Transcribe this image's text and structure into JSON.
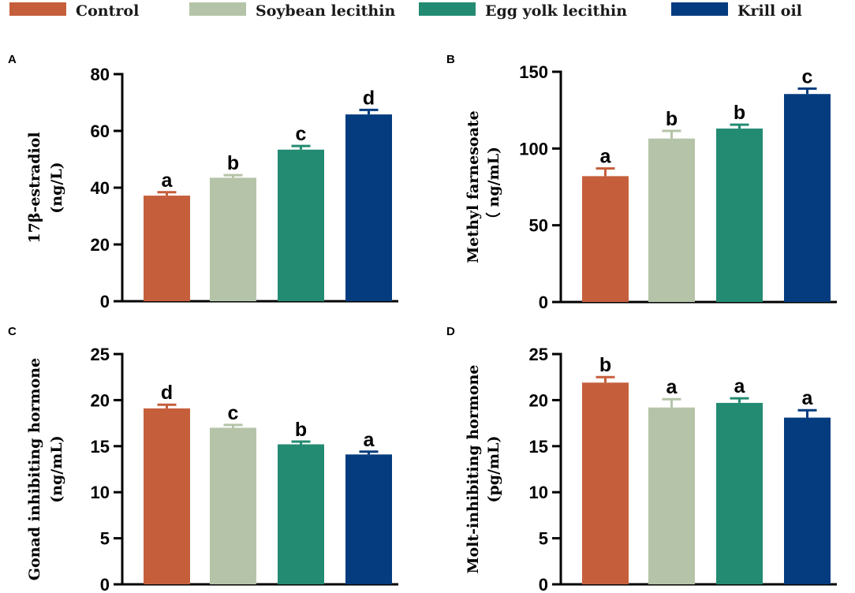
{
  "legend": [
    {
      "name": "Control",
      "color": "#C55F3B"
    },
    {
      "name": "Soybean lecithin",
      "color": "#B5C4A8"
    },
    {
      "name": "Egg yolk lecithin",
      "color": "#238B72"
    },
    {
      "name": "Krill oil",
      "color": "#043C7F"
    }
  ],
  "chart_data": [
    {
      "type": "bar",
      "panel": "A",
      "ylabel_lines": [
        "17β-estradiol",
        "(ng/L)"
      ],
      "ylim": [
        0,
        80
      ],
      "yticks": [
        0,
        20,
        40,
        60,
        80
      ],
      "categories": [
        "Control",
        "Soybean lecithin",
        "Egg yolk lecithin",
        "Krill oil"
      ],
      "values": [
        37.2,
        43.5,
        53.4,
        65.8
      ],
      "errors": [
        1.2,
        0.9,
        1.3,
        1.6
      ],
      "sig_letters": [
        "a",
        "b",
        "c",
        "d"
      ]
    },
    {
      "type": "bar",
      "panel": "B",
      "ylabel_lines": [
        "Methyl farnesoate",
        "（ ng/mL)"
      ],
      "ylim": [
        0,
        150
      ],
      "yticks": [
        0,
        50,
        100,
        150
      ],
      "categories": [
        "Control",
        "Soybean lecithin",
        "Egg yolk lecithin",
        "Krill oil"
      ],
      "values": [
        82,
        106.5,
        113,
        135.5
      ],
      "errors": [
        5,
        5,
        2.5,
        3.5
      ],
      "sig_letters": [
        "a",
        "b",
        "b",
        "c"
      ]
    },
    {
      "type": "bar",
      "panel": "C",
      "ylabel_lines": [
        "Gonad inhibiting hormone",
        "(ng/mL)"
      ],
      "ylim": [
        0,
        25
      ],
      "yticks": [
        0,
        5,
        10,
        15,
        20,
        25
      ],
      "categories": [
        "Control",
        "Soybean lecithin",
        "Egg yolk lecithin",
        "Krill oil"
      ],
      "values": [
        19.1,
        17.0,
        15.2,
        14.1
      ],
      "errors": [
        0.4,
        0.3,
        0.3,
        0.3
      ],
      "sig_letters": [
        "d",
        "c",
        "b",
        "a"
      ]
    },
    {
      "type": "bar",
      "panel": "D",
      "ylabel_lines": [
        "Molt-inhibiting hormone",
        "(pg/mL)"
      ],
      "ylim": [
        0,
        25
      ],
      "yticks": [
        0,
        5,
        10,
        15,
        20,
        25
      ],
      "categories": [
        "Control",
        "Soybean lecithin",
        "Egg yolk lecithin",
        "Krill oil"
      ],
      "values": [
        21.9,
        19.2,
        19.7,
        18.1
      ],
      "errors": [
        0.6,
        0.9,
        0.5,
        0.8
      ],
      "sig_letters": [
        "b",
        "a",
        "a",
        "a"
      ]
    }
  ]
}
